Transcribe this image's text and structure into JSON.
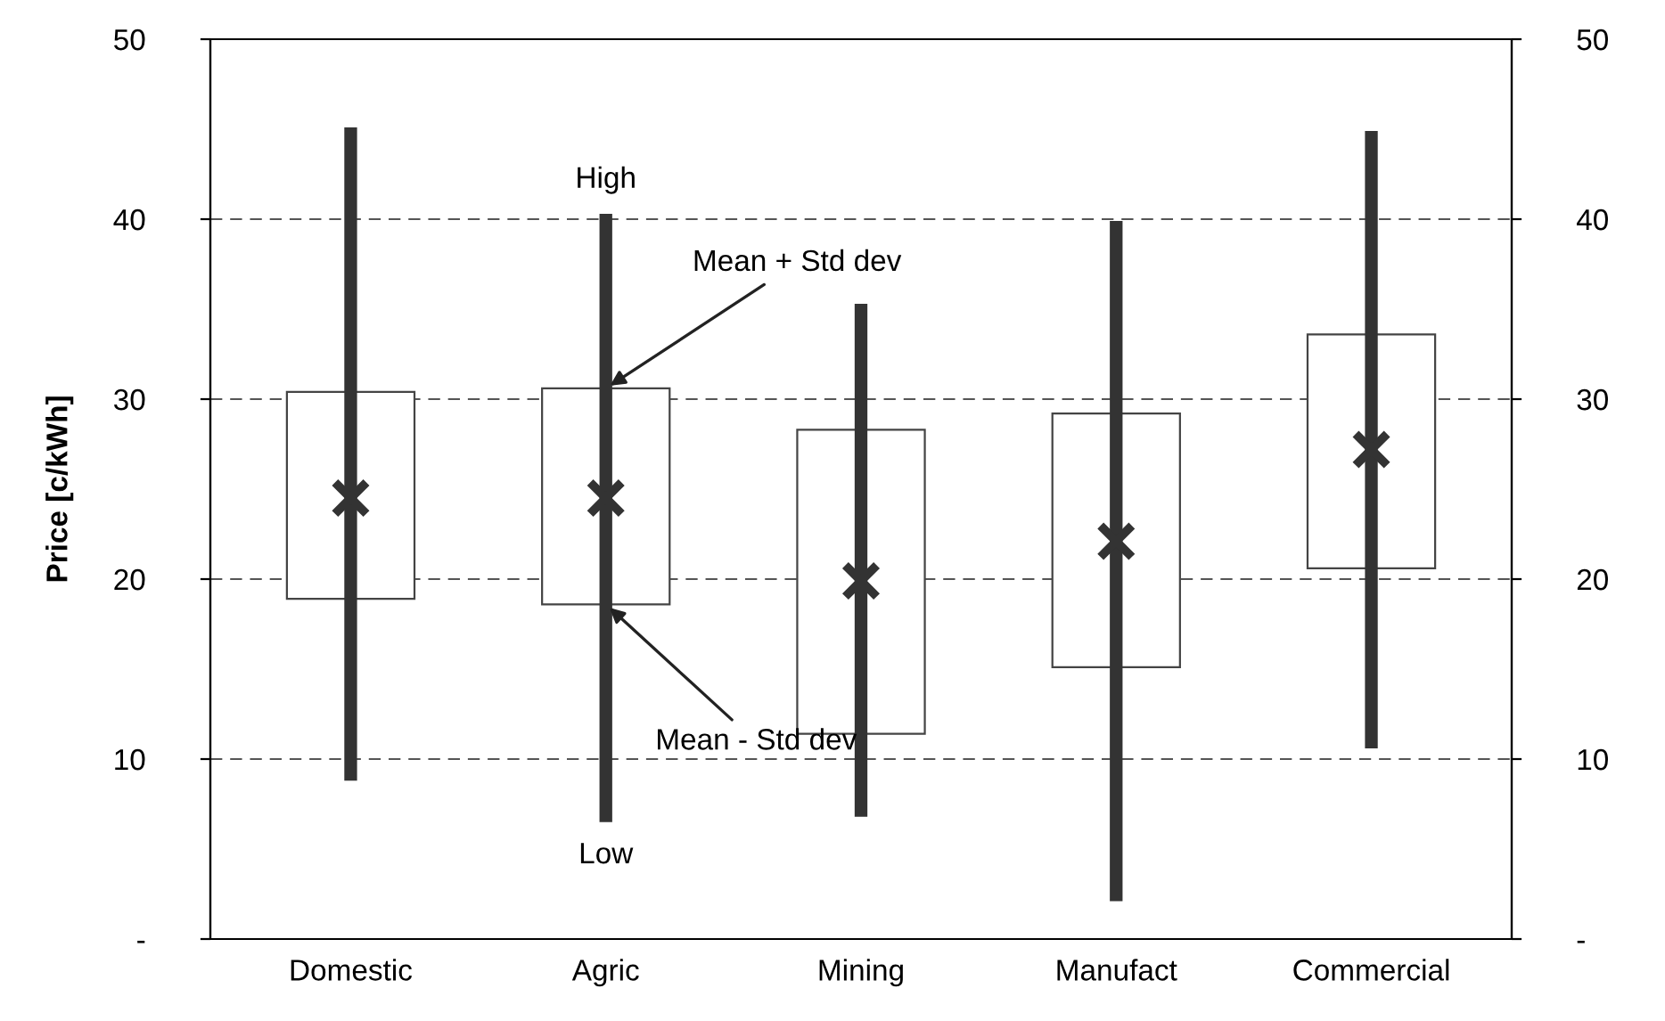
{
  "chart_data": {
    "type": "bar",
    "ylabel": "Price [c/kWh]",
    "categories": [
      "Domestic",
      "Agric",
      "Mining",
      "Manufact",
      "Commercial"
    ],
    "series": [
      {
        "color": "#ffffff",
        "base": [
          18.9,
          18.6,
          11.4,
          15.1,
          20.6
        ],
        "values": [
          11.5,
          12.0,
          16.9,
          14.1,
          13.0
        ]
      },
      {
        "color": "#333333",
        "base": [
          8.8,
          6.5,
          6.8,
          2.1,
          10.6
        ],
        "values": [
          36.3,
          33.8,
          28.5,
          37.8,
          34.3
        ]
      },
      {
        "type": "scatter",
        "color": "#333333",
        "marker": "cross",
        "x": [
          "Domestic",
          "Agric",
          "Mining",
          "Manufact",
          "Commercial"
        ],
        "values": [
          24.5,
          24.5,
          19.9,
          22.1,
          27.2
        ]
      }
    ],
    "ylim": [
      0,
      50
    ],
    "yticks": [
      {
        "value": 0,
        "label": "-"
      },
      10,
      20,
      30,
      40,
      50
    ],
    "y2lim": [
      0,
      50
    ],
    "y2ticks": [
      {
        "value": 0,
        "label": "-"
      },
      10,
      20,
      30,
      40,
      50
    ],
    "grid": "y",
    "annotations": [
      {
        "text": "High",
        "x": "Agric",
        "y": 40.3
      },
      {
        "text": "Low",
        "x": "Agric",
        "y": 6.5
      },
      {
        "text": "Mean + Std dev",
        "x": "Agric",
        "y": 30.6
      },
      {
        "text": "Mean - Std dev",
        "x": "Agric",
        "y": 18.6
      }
    ]
  }
}
